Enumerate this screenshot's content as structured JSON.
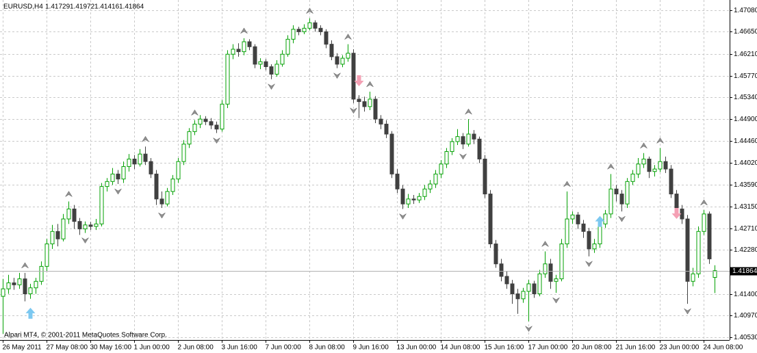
{
  "chart_data": {
    "type": "candlestick",
    "symbol": "EURUSD,H4",
    "footer": "Alpari MT4, © 2001-2011 MetaQuotes Software Corp.",
    "ylim": [
      1.40475,
      1.47286
    ],
    "yticks": [
      {
        "value": 1.4708,
        "label": "1.47080"
      },
      {
        "value": 1.4665,
        "label": "1.46650"
      },
      {
        "value": 1.4621,
        "label": "1.46210"
      },
      {
        "value": 1.4577,
        "label": "1.45770"
      },
      {
        "value": 1.4534,
        "label": "1.45340"
      },
      {
        "value": 1.449,
        "label": "1.44900"
      },
      {
        "value": 1.4446,
        "label": "1.44460"
      },
      {
        "value": 1.4402,
        "label": "1.44020"
      },
      {
        "value": 1.4359,
        "label": "1.43590"
      },
      {
        "value": 1.4315,
        "label": "1.43150"
      },
      {
        "value": 1.4271,
        "label": "1.42710"
      },
      {
        "value": 1.4228,
        "label": "1.42280"
      },
      {
        "value": 1.414,
        "label": "1.41400"
      },
      {
        "value": 1.4097,
        "label": "1.40970"
      },
      {
        "value": 1.4053,
        "label": "1.40530"
      }
    ],
    "xlabels": [
      "26 May 2011",
      "27 May 08:00",
      "30 May 16:00",
      "1 Jun 00:00",
      "2 Jun 08:00",
      "3 Jun 16:00",
      "7 Jun 00:00",
      "8 Jun 08:00",
      "9 Jun 16:00",
      "13 Jun 00:00",
      "14 Jun 08:00",
      "15 Jun 16:00",
      "17 Jun 00:00",
      "20 Jun 08:00",
      "21 Jun 16:00",
      "23 Jun 00:00",
      "24 Jun 08:00"
    ],
    "bull_color": "#00a000",
    "bear_color": "#404040",
    "ohlc": [
      [
        1.4135,
        1.417,
        1.406,
        1.415
      ],
      [
        1.415,
        1.4178,
        1.414,
        1.4162
      ],
      [
        1.4162,
        1.4172,
        1.4148,
        1.4158
      ],
      [
        1.4158,
        1.4182,
        1.415,
        1.417
      ],
      [
        1.417,
        1.4182,
        1.4125,
        1.414
      ],
      [
        1.414,
        1.416,
        1.413,
        1.4152
      ],
      [
        1.4152,
        1.4172,
        1.414,
        1.4165
      ],
      [
        1.4165,
        1.4205,
        1.4158,
        1.4195
      ],
      [
        1.4195,
        1.425,
        1.4185,
        1.424
      ],
      [
        1.424,
        1.4278,
        1.423,
        1.4265
      ],
      [
        1.4265,
        1.428,
        1.4235,
        1.425
      ],
      [
        1.425,
        1.43,
        1.4245,
        1.429
      ],
      [
        1.429,
        1.4325,
        1.428,
        1.431
      ],
      [
        1.431,
        1.4318,
        1.427,
        1.4285
      ],
      [
        1.4285,
        1.4292,
        1.4258,
        1.427
      ],
      [
        1.427,
        1.4285,
        1.4262,
        1.4278
      ],
      [
        1.4278,
        1.4284,
        1.4268,
        1.4275
      ],
      [
        1.4275,
        1.429,
        1.4268,
        1.428
      ],
      [
        1.428,
        1.4362,
        1.4275,
        1.4355
      ],
      [
        1.4355,
        1.4372,
        1.4345,
        1.4365
      ],
      [
        1.4365,
        1.4392,
        1.4358,
        1.438
      ],
      [
        1.438,
        1.4388,
        1.436,
        1.437
      ],
      [
        1.437,
        1.4405,
        1.4362,
        1.4395
      ],
      [
        1.4395,
        1.442,
        1.4385,
        1.441
      ],
      [
        1.441,
        1.4418,
        1.439,
        1.44
      ],
      [
        1.44,
        1.443,
        1.4395,
        1.442
      ],
      [
        1.442,
        1.4435,
        1.4398,
        1.4405
      ],
      [
        1.4405,
        1.4412,
        1.4372,
        1.438
      ],
      [
        1.438,
        1.4388,
        1.4318,
        1.433
      ],
      [
        1.433,
        1.4345,
        1.4312,
        1.432
      ],
      [
        1.432,
        1.4352,
        1.4315,
        1.4345
      ],
      [
        1.4345,
        1.4378,
        1.4338,
        1.437
      ],
      [
        1.437,
        1.4412,
        1.4362,
        1.4405
      ],
      [
        1.4405,
        1.4448,
        1.4398,
        1.444
      ],
      [
        1.444,
        1.4472,
        1.4432,
        1.4465
      ],
      [
        1.4465,
        1.4488,
        1.4458,
        1.448
      ],
      [
        1.448,
        1.4498,
        1.4472,
        1.449
      ],
      [
        1.449,
        1.4496,
        1.4478,
        1.4485
      ],
      [
        1.4485,
        1.4492,
        1.447,
        1.4478
      ],
      [
        1.4478,
        1.4485,
        1.4462,
        1.447
      ],
      [
        1.447,
        1.4528,
        1.4465,
        1.452
      ],
      [
        1.452,
        1.4628,
        1.4512,
        1.462
      ],
      [
        1.462,
        1.464,
        1.461,
        1.463
      ],
      [
        1.463,
        1.4642,
        1.4615,
        1.4625
      ],
      [
        1.4625,
        1.4652,
        1.4618,
        1.4645
      ],
      [
        1.4645,
        1.465,
        1.4628,
        1.4635
      ],
      [
        1.4635,
        1.464,
        1.4592,
        1.46
      ],
      [
        1.46,
        1.4612,
        1.459,
        1.4605
      ],
      [
        1.4605,
        1.461,
        1.4588,
        1.4595
      ],
      [
        1.4595,
        1.46,
        1.457,
        1.458
      ],
      [
        1.458,
        1.4608,
        1.4575,
        1.46
      ],
      [
        1.46,
        1.4628,
        1.4595,
        1.462
      ],
      [
        1.462,
        1.4658,
        1.4615,
        1.465
      ],
      [
        1.465,
        1.4678,
        1.4642,
        1.467
      ],
      [
        1.467,
        1.4675,
        1.4658,
        1.4665
      ],
      [
        1.4665,
        1.468,
        1.466,
        1.4672
      ],
      [
        1.4672,
        1.4692,
        1.4668,
        1.4683
      ],
      [
        1.4683,
        1.4688,
        1.4665,
        1.4672
      ],
      [
        1.4672,
        1.4678,
        1.4658,
        1.4665
      ],
      [
        1.4665,
        1.467,
        1.4632,
        1.464
      ],
      [
        1.464,
        1.4648,
        1.4608,
        1.4615
      ],
      [
        1.4615,
        1.4622,
        1.4592,
        1.46
      ],
      [
        1.46,
        1.4618,
        1.4594,
        1.4612
      ],
      [
        1.4612,
        1.464,
        1.4605,
        1.4622
      ],
      [
        1.4622,
        1.463,
        1.4522,
        1.453
      ],
      [
        1.453,
        1.4538,
        1.4492,
        1.4525
      ],
      [
        1.4525,
        1.4535,
        1.4505,
        1.4515
      ],
      [
        1.4515,
        1.4545,
        1.4508,
        1.453
      ],
      [
        1.453,
        1.4536,
        1.4482,
        1.449
      ],
      [
        1.449,
        1.4498,
        1.447,
        1.448
      ],
      [
        1.448,
        1.4488,
        1.4452,
        1.446
      ],
      [
        1.446,
        1.4466,
        1.4372,
        1.438
      ],
      [
        1.438,
        1.439,
        1.4342,
        1.435
      ],
      [
        1.435,
        1.4358,
        1.431,
        1.432
      ],
      [
        1.432,
        1.434,
        1.4312,
        1.433
      ],
      [
        1.433,
        1.4338,
        1.432,
        1.4328
      ],
      [
        1.4328,
        1.4342,
        1.4322,
        1.4335
      ],
      [
        1.4335,
        1.4358,
        1.4328,
        1.435
      ],
      [
        1.435,
        1.4368,
        1.4342,
        1.436
      ],
      [
        1.436,
        1.4388,
        1.4352,
        1.438
      ],
      [
        1.438,
        1.4408,
        1.4372,
        1.44
      ],
      [
        1.44,
        1.4432,
        1.4392,
        1.4425
      ],
      [
        1.4425,
        1.4452,
        1.4418,
        1.4445
      ],
      [
        1.4445,
        1.447,
        1.4438,
        1.4455
      ],
      [
        1.4455,
        1.4462,
        1.443,
        1.444
      ],
      [
        1.444,
        1.449,
        1.4435,
        1.446
      ],
      [
        1.446,
        1.4468,
        1.444,
        1.445
      ],
      [
        1.445,
        1.4455,
        1.4402,
        1.441
      ],
      [
        1.441,
        1.4418,
        1.4332,
        1.434
      ],
      [
        1.434,
        1.4348,
        1.4232,
        1.424
      ],
      [
        1.424,
        1.4248,
        1.4192,
        1.42
      ],
      [
        1.42,
        1.421,
        1.4165,
        1.4175
      ],
      [
        1.4175,
        1.4185,
        1.415,
        1.416
      ],
      [
        1.416,
        1.4168,
        1.412,
        1.414
      ],
      [
        1.414,
        1.415,
        1.41,
        1.413
      ],
      [
        1.413,
        1.4152,
        1.4122,
        1.4145
      ],
      [
        1.4145,
        1.4168,
        1.4085,
        1.416
      ],
      [
        1.416,
        1.4166,
        1.4132,
        1.414
      ],
      [
        1.414,
        1.4188,
        1.4135,
        1.418
      ],
      [
        1.418,
        1.4225,
        1.4172,
        1.42
      ],
      [
        1.42,
        1.421,
        1.415,
        1.4165
      ],
      [
        1.4165,
        1.4178,
        1.4142,
        1.417
      ],
      [
        1.417,
        1.425,
        1.4165,
        1.424
      ],
      [
        1.424,
        1.4345,
        1.4232,
        1.429
      ],
      [
        1.429,
        1.4305,
        1.428,
        1.4298
      ],
      [
        1.4298,
        1.4304,
        1.427,
        1.428
      ],
      [
        1.428,
        1.4288,
        1.4252,
        1.4265
      ],
      [
        1.4265,
        1.4272,
        1.4215,
        1.423
      ],
      [
        1.423,
        1.425,
        1.4222,
        1.424
      ],
      [
        1.424,
        1.429,
        1.4232,
        1.428
      ],
      [
        1.428,
        1.4308,
        1.4272,
        1.43
      ],
      [
        1.43,
        1.438,
        1.4292,
        1.435
      ],
      [
        1.435,
        1.4358,
        1.4325,
        1.434
      ],
      [
        1.434,
        1.4348,
        1.4305,
        1.432
      ],
      [
        1.432,
        1.4372,
        1.4312,
        1.4365
      ],
      [
        1.4365,
        1.4388,
        1.4358,
        1.438
      ],
      [
        1.438,
        1.4412,
        1.4372,
        1.44
      ],
      [
        1.44,
        1.4422,
        1.4392,
        1.441
      ],
      [
        1.441,
        1.4415,
        1.4372,
        1.4385
      ],
      [
        1.4385,
        1.4398,
        1.4375,
        1.439
      ],
      [
        1.439,
        1.4432,
        1.4384,
        1.4405
      ],
      [
        1.4405,
        1.4415,
        1.4382,
        1.439
      ],
      [
        1.439,
        1.4398,
        1.4332,
        1.434
      ],
      [
        1.434,
        1.4348,
        1.4302,
        1.431
      ],
      [
        1.431,
        1.4318,
        1.428,
        1.429
      ],
      [
        1.429,
        1.4298,
        1.412,
        1.4165
      ],
      [
        1.4165,
        1.4192,
        1.4155,
        1.418
      ],
      [
        1.418,
        1.4275,
        1.4172,
        1.4265
      ],
      [
        1.4265,
        1.4308,
        1.4258,
        1.43
      ],
      [
        1.43,
        1.4305,
        1.42,
        1.421
      ],
      [
        1.41729,
        1.41972,
        1.41416,
        1.41864
      ]
    ],
    "fractals_up": [
      4,
      12,
      26,
      35,
      44,
      56,
      63,
      67,
      85,
      99,
      103,
      111,
      117,
      120,
      128
    ],
    "fractals_down": [
      15,
      21,
      29,
      39,
      49,
      61,
      64,
      73,
      84,
      96,
      101,
      107,
      113,
      125
    ],
    "buy_signals": {
      "index": [
        5,
        109
      ],
      "price": [
        1.4112,
        1.4296
      ],
      "color": "#7cc8f0"
    },
    "sell_signals": {
      "index": [
        65,
        123
      ],
      "price": [
        1.4556,
        1.429
      ],
      "color": "#f4a0b4"
    }
  }
}
